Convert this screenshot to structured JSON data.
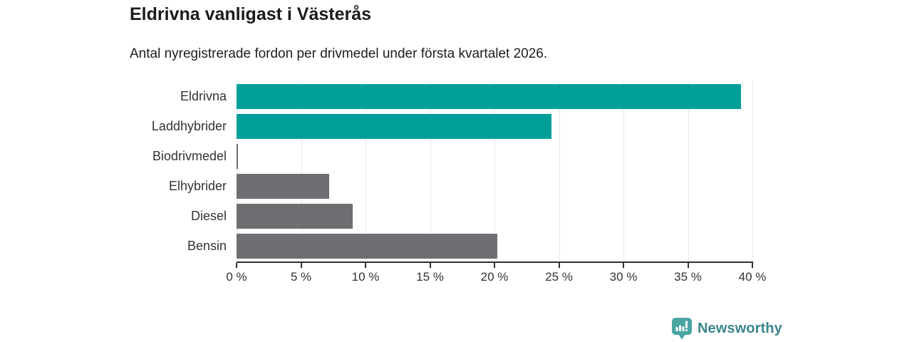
{
  "title": "Eldrivna vanligast i Västerås",
  "subtitle": "Antal nyregistrerade fordon per drivmedel under första kvartalet 2026.",
  "chart_data": {
    "type": "bar",
    "orientation": "horizontal",
    "title": "Eldrivna vanligast i Västerås",
    "subtitle": "Antal nyregistrerade fordon per drivmedel under första kvartalet 2026.",
    "categories": [
      "Eldrivna",
      "Laddhybrider",
      "Biodrivmedel",
      "Elhybrider",
      "Diesel",
      "Bensin"
    ],
    "values": [
      39.1,
      24.4,
      0.1,
      7.2,
      9.0,
      20.2
    ],
    "unit": "%",
    "bar_colors": [
      "#00a09a",
      "#00a09a",
      "#6e6e73",
      "#6e6e73",
      "#6e6e73",
      "#6e6e73"
    ],
    "xlim": [
      0,
      40
    ],
    "x_ticks": [
      0,
      5,
      10,
      15,
      20,
      25,
      30,
      35,
      40
    ],
    "x_tick_suffix": " %",
    "grid": true,
    "legend": false
  },
  "colors": {
    "accent_teal": "#00a09a",
    "neutral_gray": "#6e6e73",
    "gridline": "#e8e8e8",
    "axis": "#2f2f2f",
    "text_dark": "#1b1b1b",
    "text_label": "#333333"
  },
  "branding": {
    "logo_text": "Newsworthy",
    "logo_text_color": "#39868d",
    "logo_icon_color": "#4aa5a2",
    "logo_icon": "newsworthy-chart-pin-icon"
  }
}
